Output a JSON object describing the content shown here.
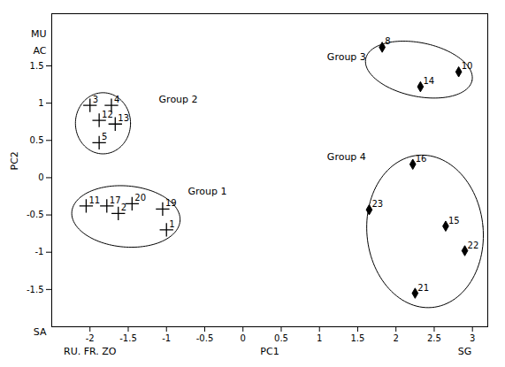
{
  "chart_data": {
    "type": "scatter",
    "title": "",
    "xlabel": "PC1",
    "ylabel": "PC2",
    "xlim": [
      -2.5,
      3.2
    ],
    "ylim": [
      -2.0,
      2.2
    ],
    "xticks": [
      -2.0,
      -1.5,
      -1.0,
      -0.5,
      0.0,
      0.5,
      1.0,
      1.5,
      2.0,
      2.5,
      3.0
    ],
    "yticks": [
      -1.5,
      -1.0,
      -0.5,
      0.0,
      0.5,
      1.0,
      1.5
    ],
    "grid": false,
    "legend": false,
    "series": [
      {
        "marker": "plus",
        "labels": [
          "3",
          "4",
          "12",
          "13",
          "5",
          "11",
          "17",
          "2",
          "20",
          "19",
          "1"
        ],
        "x": [
          -2.0,
          -1.72,
          -1.88,
          -1.67,
          -1.88,
          -2.05,
          -1.78,
          -1.63,
          -1.45,
          -1.05,
          -1.0
        ],
        "y": [
          0.97,
          0.97,
          0.77,
          0.72,
          0.47,
          -0.38,
          -0.38,
          -0.48,
          -0.35,
          -0.42,
          -0.7
        ]
      },
      {
        "marker": "diamond",
        "labels": [
          "8",
          "10",
          "14",
          "16",
          "23",
          "15",
          "22",
          "21"
        ],
        "x": [
          1.82,
          2.82,
          2.32,
          2.22,
          1.65,
          2.65,
          2.9,
          2.25
        ],
        "y": [
          1.75,
          1.42,
          1.22,
          0.18,
          -0.43,
          -0.65,
          -0.98,
          -1.55
        ]
      }
    ],
    "groups": [
      {
        "name": "Group 1",
        "label_x": -0.72,
        "label_y": -0.18,
        "center_x": -1.53,
        "center_y": -0.52,
        "width": 1.42,
        "height": 0.82,
        "angle": -5
      },
      {
        "name": "Group 2",
        "label_x": -1.1,
        "label_y": 1.05,
        "center_x": -1.83,
        "center_y": 0.73,
        "width": 0.72,
        "height": 0.82,
        "angle": 0
      },
      {
        "name": "Group 3",
        "label_x": 1.1,
        "label_y": 1.62,
        "center_x": 2.3,
        "center_y": 1.45,
        "width": 1.42,
        "height": 0.72,
        "angle": -12
      },
      {
        "name": "Group 4",
        "label_x": 1.1,
        "label_y": 0.28,
        "center_x": 2.38,
        "center_y": -0.72,
        "width": 1.52,
        "height": 2.05,
        "angle": 5
      }
    ],
    "annotations": [
      {
        "text": "MU",
        "x": -2.5,
        "y": 2.0
      },
      {
        "text": "AC",
        "x": -2.5,
        "y": 1.78
      },
      {
        "text": "SA",
        "x": -2.5,
        "y": -2.0
      },
      {
        "text": "RU. FR. ZO",
        "x": -2.0,
        "y": -2.0
      },
      {
        "text": "SG",
        "x": 2.9,
        "y": -2.0
      }
    ]
  }
}
